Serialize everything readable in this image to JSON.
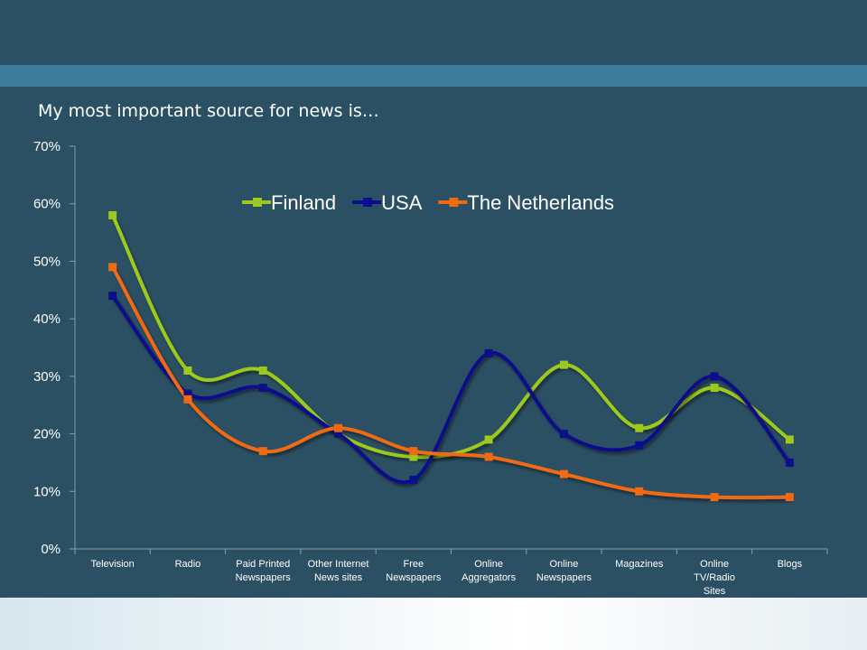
{
  "slide": {
    "subtitle": "My most important source for news is…"
  },
  "colors": {
    "background": "#2b5064",
    "band": "#3f7d9c",
    "axis": "#8a9aa3"
  },
  "chart_data": {
    "type": "line",
    "smooth": true,
    "categories": [
      [
        "Television"
      ],
      [
        "Radio"
      ],
      [
        "Paid Printed",
        "Newspapers"
      ],
      [
        "Other Internet",
        "News sites"
      ],
      [
        "Free",
        "Newspapers"
      ],
      [
        "Online",
        "Aggregators"
      ],
      [
        "Online",
        "Newspapers"
      ],
      [
        "Magazines"
      ],
      [
        "Online",
        "TV/Radio",
        "Sites"
      ],
      [
        "Blogs"
      ]
    ],
    "ylim": [
      0,
      0.7
    ],
    "yticks": [
      0,
      0.1,
      0.2,
      0.3,
      0.4,
      0.5,
      0.6,
      0.7
    ],
    "ytick_labels": [
      "0%",
      "10%",
      "20%",
      "30%",
      "40%",
      "50%",
      "60%",
      "70%"
    ],
    "legend_position": "top-center",
    "series": [
      {
        "name": "Finland",
        "color": "#9dc81f",
        "values": [
          0.58,
          0.31,
          0.31,
          0.2,
          0.16,
          0.19,
          0.32,
          0.21,
          0.28,
          0.19
        ]
      },
      {
        "name": "USA",
        "color": "#0b0f8c",
        "values": [
          0.44,
          0.27,
          0.28,
          0.2,
          0.12,
          0.34,
          0.2,
          0.18,
          0.3,
          0.15
        ]
      },
      {
        "name": "The Netherlands",
        "color": "#f06a12",
        "values": [
          0.49,
          0.26,
          0.17,
          0.21,
          0.17,
          0.16,
          0.13,
          0.1,
          0.09,
          0.09
        ]
      }
    ]
  }
}
